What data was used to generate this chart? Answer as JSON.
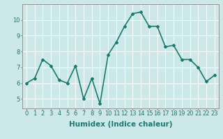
{
  "x": [
    0,
    1,
    2,
    3,
    4,
    5,
    6,
    7,
    8,
    9,
    10,
    11,
    12,
    13,
    14,
    15,
    16,
    17,
    18,
    19,
    20,
    21,
    22,
    23
  ],
  "y": [
    6.0,
    6.3,
    7.5,
    7.1,
    6.2,
    6.0,
    7.1,
    5.0,
    6.3,
    4.7,
    7.8,
    8.6,
    9.6,
    10.4,
    10.5,
    9.6,
    9.6,
    8.3,
    8.4,
    7.5,
    7.5,
    7.0,
    6.1,
    6.5
  ],
  "line_color": "#1a7a6e",
  "marker": "D",
  "marker_size": 2.0,
  "bg_color": "#cce8e8",
  "grid_color": "#ffffff",
  "xlabel": "Humidex (Indice chaleur)",
  "xlabel_fontsize": 7.5,
  "xlim": [
    -0.5,
    23.5
  ],
  "ylim": [
    4.4,
    11.0
  ],
  "yticks": [
    5,
    6,
    7,
    8,
    9,
    10
  ],
  "xticks": [
    0,
    1,
    2,
    3,
    4,
    5,
    6,
    7,
    8,
    9,
    10,
    11,
    12,
    13,
    14,
    15,
    16,
    17,
    18,
    19,
    20,
    21,
    22,
    23
  ],
  "tick_fontsize": 6.0,
  "linewidth": 1.2
}
